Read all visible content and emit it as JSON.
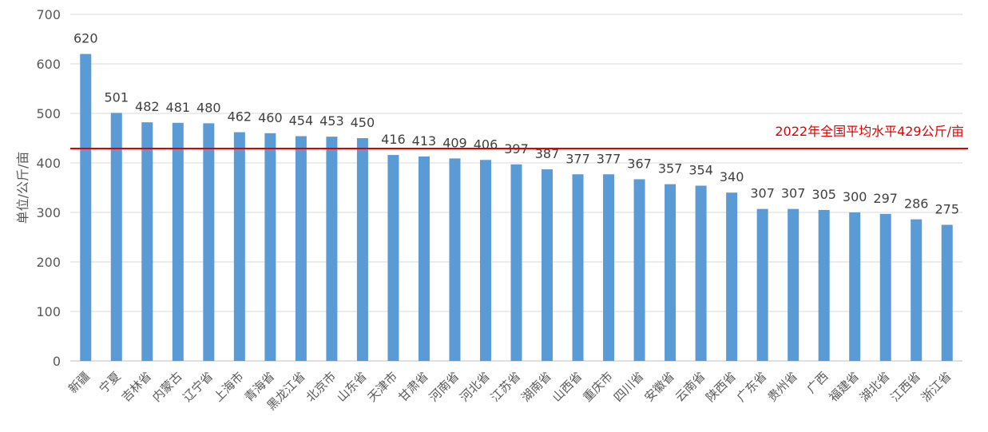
{
  "chart_data": {
    "type": "bar",
    "ylabel": "单位/公斤/亩",
    "ylim": [
      0,
      700
    ],
    "yticks": [
      0,
      100,
      200,
      300,
      400,
      500,
      600,
      700
    ],
    "grid": true,
    "bar_color": "#5b9bd5",
    "categories": [
      "新疆",
      "宁夏",
      "吉林省",
      "内蒙古",
      "辽宁省",
      "上海市",
      "青海省",
      "黑龙江省",
      "北京市",
      "山东省",
      "天津市",
      "甘肃省",
      "河南省",
      "河北省",
      "江苏省",
      "湖南省",
      "山西省",
      "重庆市",
      "四川省",
      "安徽省",
      "云南省",
      "陕西省",
      "广东省",
      "贵州省",
      "广西",
      "福建省",
      "湖北省",
      "江西省",
      "浙江省"
    ],
    "values": [
      620,
      501,
      482,
      481,
      480,
      462,
      460,
      454,
      453,
      450,
      416,
      413,
      409,
      406,
      397,
      387,
      377,
      377,
      367,
      357,
      354,
      340,
      307,
      307,
      305,
      300,
      297,
      286,
      275
    ],
    "reference_line": {
      "value": 429,
      "label": "2022年全国平均水平429公斤/亩",
      "color": "#e00000"
    }
  }
}
